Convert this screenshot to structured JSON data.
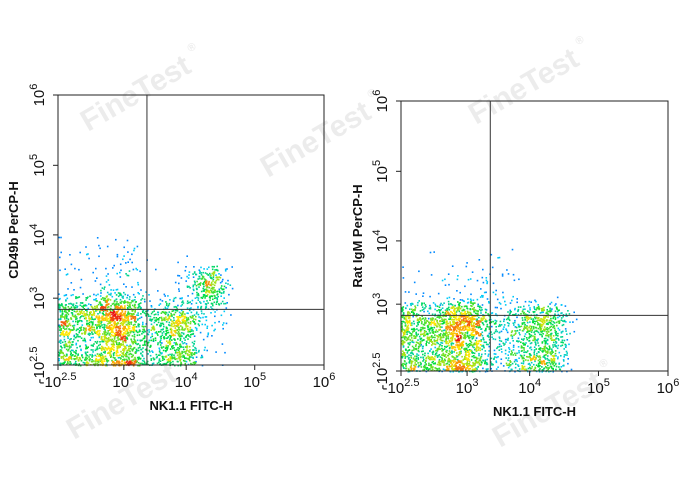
{
  "watermark": {
    "text": "FineTest",
    "symbol": "®"
  },
  "chart_data": [
    {
      "type": "scatter",
      "subtype": "flow-cytometry-density-dot-plot",
      "title": "",
      "xlabel": "NK1.1 FITC-H",
      "ylabel": "CD49b PerCP-H",
      "x_scale": "biexponential-log",
      "y_scale": "biexponential-log",
      "x_ticks": [
        {
          "label": "-10",
          "exp": "2.5",
          "value": -316
        },
        {
          "label": "10",
          "exp": "3",
          "value": 1000
        },
        {
          "label": "10",
          "exp": "4",
          "value": 10000
        },
        {
          "label": "10",
          "exp": "5",
          "value": 100000
        },
        {
          "label": "10",
          "exp": "6",
          "value": 1000000
        }
      ],
      "y_ticks": [
        {
          "label": "-10",
          "exp": "2.5",
          "value": -316
        },
        {
          "label": "10",
          "exp": "3",
          "value": 1000
        },
        {
          "label": "10",
          "exp": "4",
          "value": 10000
        },
        {
          "label": "10",
          "exp": "5",
          "value": 100000
        },
        {
          "label": "10",
          "exp": "6",
          "value": 1000000
        }
      ],
      "gate": {
        "x": 2500,
        "y": 600
      },
      "populations": [
        {
          "name": "",
          "x_center": 0,
          "y_center": 0,
          "x_spread": 900,
          "y_spread": 500,
          "share": 0.66
        },
        {
          "name": "",
          "x_center": 5000,
          "y_center": 0,
          "x_spread": 4500,
          "y_spread": 400,
          "share": 0.22
        },
        {
          "name": "",
          "x_center": 20000,
          "y_center": 1500,
          "x_spread": 9000,
          "y_spread": 900,
          "share": 0.07
        },
        {
          "name": "",
          "x_center": 0,
          "y_center": 1200,
          "x_spread": 1000,
          "y_spread": 3500,
          "share": 0.05
        }
      ]
    },
    {
      "type": "scatter",
      "subtype": "flow-cytometry-density-dot-plot",
      "title": "",
      "xlabel": "NK1.1 FITC-H",
      "ylabel": "Rat IgM PerCP-H",
      "x_scale": "biexponential-log",
      "y_scale": "biexponential-log",
      "x_ticks": [
        {
          "label": "-10",
          "exp": "2.5",
          "value": -316
        },
        {
          "label": "10",
          "exp": "3",
          "value": 1000
        },
        {
          "label": "10",
          "exp": "4",
          "value": 10000
        },
        {
          "label": "10",
          "exp": "5",
          "value": 100000
        },
        {
          "label": "10",
          "exp": "6",
          "value": 1000000
        }
      ],
      "y_ticks": [
        {
          "label": "-10",
          "exp": "2.5",
          "value": -316
        },
        {
          "label": "10",
          "exp": "3",
          "value": 1000
        },
        {
          "label": "10",
          "exp": "4",
          "value": 10000
        },
        {
          "label": "10",
          "exp": "5",
          "value": 100000
        },
        {
          "label": "10",
          "exp": "6",
          "value": 1000000
        }
      ],
      "gate": {
        "x": 2500,
        "y": 600
      },
      "populations": [
        {
          "name": "",
          "x_center": 0,
          "y_center": 0,
          "x_spread": 900,
          "y_spread": 500,
          "share": 0.66
        },
        {
          "name": "",
          "x_center": 9000,
          "y_center": 50,
          "x_spread": 11000,
          "y_spread": 450,
          "share": 0.29
        },
        {
          "name": "",
          "x_center": 0,
          "y_center": 800,
          "x_spread": 3000,
          "y_spread": 2500,
          "share": 0.05
        }
      ]
    }
  ]
}
